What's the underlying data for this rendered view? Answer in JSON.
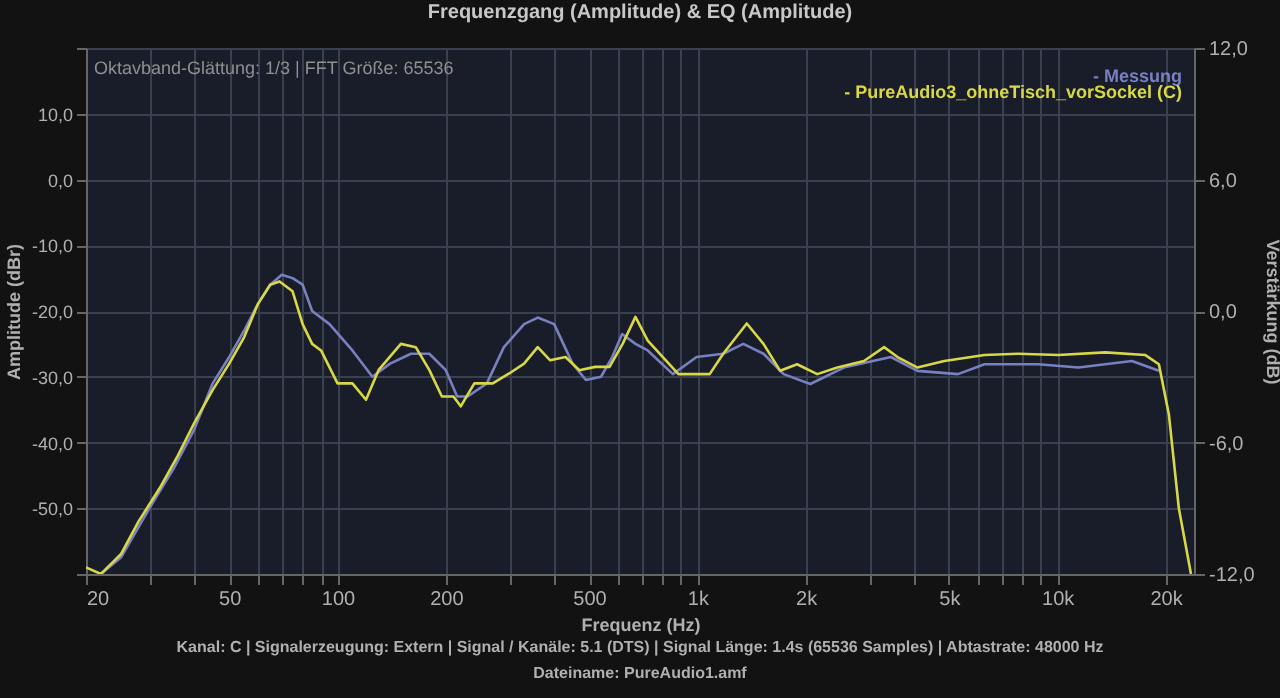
{
  "chart_data": {
    "type": "line",
    "title": "Frequenzgang (Amplitude) & EQ (Amplitude)",
    "xlabel": "Frequenz (Hz)",
    "ylabel": "Amplitude (dBr)",
    "y2label": "Verstärkung (dB)",
    "log": "x",
    "grid": true,
    "legend": "top right",
    "line_style": "solid",
    "marker": "none",
    "xlim": [
      20,
      24000
    ],
    "xticks": [
      20,
      {
        "value": 30,
        "label": null
      },
      {
        "value": 40,
        "label": null
      },
      50,
      {
        "value": 60,
        "label": null
      },
      {
        "value": 70,
        "label": null
      },
      {
        "value": 80,
        "label": null
      },
      {
        "value": 90,
        "label": null
      },
      100,
      200,
      {
        "value": 300,
        "label": null
      },
      {
        "value": 400,
        "label": null
      },
      500,
      {
        "value": 600,
        "label": null
      },
      {
        "value": 700,
        "label": null
      },
      {
        "value": 800,
        "label": null
      },
      {
        "value": 900,
        "label": null
      },
      {
        "value": 1000,
        "label": "1k"
      },
      {
        "value": 2000,
        "label": "2k"
      },
      {
        "value": 3000,
        "label": null
      },
      {
        "value": 4000,
        "label": null
      },
      {
        "value": 5000,
        "label": "5k"
      },
      {
        "value": 6000,
        "label": null
      },
      {
        "value": 7000,
        "label": null
      },
      {
        "value": 8000,
        "label": null
      },
      {
        "value": 9000,
        "label": null
      },
      {
        "value": 10000,
        "label": "10k"
      },
      {
        "value": 20000,
        "label": "20k"
      }
    ],
    "ylim": [
      -60,
      20
    ],
    "yticks": [
      {
        "value": -60,
        "label": null
      },
      {
        "value": -50,
        "label": "-50,0"
      },
      {
        "value": -40,
        "label": "-40,0"
      },
      {
        "value": -30,
        "label": "-30,0"
      },
      {
        "value": -20,
        "label": "-20,0"
      },
      {
        "value": -10,
        "label": "-10,0"
      },
      {
        "value": 0,
        "label": "0,0"
      },
      {
        "value": 10,
        "label": "10,0"
      },
      {
        "value": 20,
        "label": null
      }
    ],
    "y2lim": [
      -12,
      12
    ],
    "y2ticks": [
      {
        "value": -12,
        "label": "-12,0"
      },
      {
        "value": -6,
        "label": "-6,0"
      },
      {
        "value": 0,
        "label": "0,0"
      },
      {
        "value": 6,
        "label": "6,0"
      },
      {
        "value": 12,
        "label": "12,0"
      }
    ],
    "series": [
      {
        "name": "- Messung",
        "color": "#7880c0",
        "x": [
          22,
          25,
          30,
          35,
          40,
          45,
          50,
          55,
          60,
          65,
          70,
          75,
          80,
          85,
          95,
          110,
          125,
          140,
          160,
          180,
          200,
          215,
          230,
          260,
          290,
          330,
          360,
          400,
          450,
          490,
          540,
          580,
          618,
          673,
          728,
          855,
          995,
          1180,
          1342,
          1527,
          1737,
          2060,
          2553,
          3450,
          4090,
          5300,
          6280,
          8850,
          11460,
          16140,
          19170
        ],
        "values": [
          -60,
          -57.5,
          -50,
          -44,
          -38,
          -31,
          -27,
          -23,
          -19,
          -16,
          -14.5,
          -15,
          -16,
          -20,
          -22,
          -26,
          -30,
          -28,
          -26.5,
          -26.5,
          -29,
          -33,
          -33,
          -31,
          -25.5,
          -22,
          -21,
          -22,
          -28,
          -30.5,
          -30,
          -27,
          -23.5,
          -25,
          -26,
          -29.6,
          -27,
          -26.5,
          -25,
          -26.5,
          -29.6,
          -31.1,
          -28.6,
          -27,
          -29.1,
          -29.6,
          -28.1,
          -28.1,
          -28.6,
          -27.6,
          -29.1
        ]
      },
      {
        "name": "- PureAudio3_ohneTisch_vorSockel (C)",
        "color": "#d8d846",
        "x": [
          20,
          22,
          25,
          28,
          32,
          36,
          40,
          45,
          50,
          55,
          60,
          65,
          69,
          75,
          80,
          85,
          90,
          100,
          110,
          120,
          130,
          150,
          165,
          180,
          195,
          210,
          220,
          240,
          270,
          300,
          330,
          360,
          390,
          430,
          470,
          520,
          570,
          620,
          673,
          728,
          886,
          1082,
          1180,
          1372,
          1527,
          1699,
          1893,
          2154,
          2449,
          2904,
          3304,
          3600,
          4090,
          4856,
          6280,
          7790,
          10080,
          13600,
          17580,
          19170,
          20430,
          21780,
          23540
        ],
        "values": [
          -59,
          -60,
          -57,
          -52,
          -47,
          -42,
          -37,
          -32,
          -28,
          -24,
          -19,
          -16,
          -15.5,
          -17,
          -22,
          -25,
          -26,
          -31,
          -31,
          -33.5,
          -29,
          -25,
          -25.5,
          -29,
          -33,
          -33,
          -34.5,
          -31,
          -31,
          -29.5,
          -28,
          -25.5,
          -27.5,
          -27,
          -29,
          -28.5,
          -28.5,
          -25,
          -20.9,
          -24.5,
          -29.6,
          -29.6,
          -26.5,
          -21.9,
          -25,
          -29.1,
          -28.1,
          -29.6,
          -28.6,
          -27.6,
          -25.5,
          -27,
          -28.6,
          -27.6,
          -26.7,
          -26.5,
          -26.7,
          -26.3,
          -26.7,
          -28.1,
          -35.7,
          -50,
          -60
        ]
      }
    ],
    "annotations": [
      "Oktavband-Glättung: 1/3 | FFT Größe: 65536",
      "Kanal: C  |  Signalerzeugung: Extern   |  Signal / Kanäle: 5.1 (DTS)  |  Signal Länge: 1.4s (65536 Samples)  |  Abtastrate: 48000 Hz",
      "Dateiname: PureAudio1.amf"
    ]
  }
}
